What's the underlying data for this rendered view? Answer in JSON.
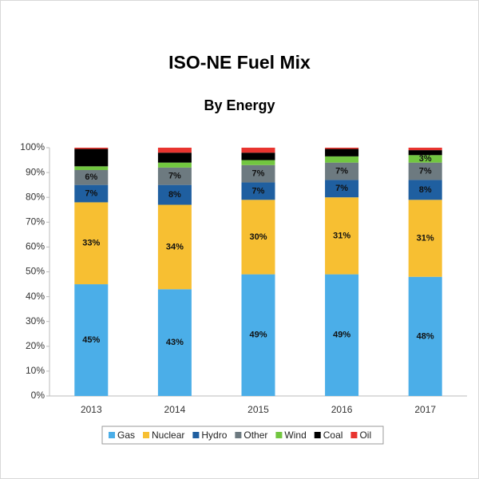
{
  "chart_data": {
    "type": "stacked_bar",
    "title": "ISO-NE Fuel Mix",
    "subtitle": "By Energy",
    "categories": [
      "2013",
      "2014",
      "2015",
      "2016",
      "2017"
    ],
    "series": [
      {
        "name": "Gas",
        "color": "#4baee8",
        "values": [
          45,
          43,
          49,
          49,
          48
        ],
        "value_labels": [
          "45%",
          "43%",
          "49%",
          "49%",
          "48%"
        ]
      },
      {
        "name": "Nuclear",
        "color": "#f7bf32",
        "values": [
          33,
          34,
          30,
          31,
          31
        ],
        "value_labels": [
          "33%",
          "34%",
          "30%",
          "31%",
          "31%"
        ]
      },
      {
        "name": "Hydro",
        "color": "#1f5fa0",
        "values": [
          7,
          8,
          7,
          7,
          8
        ],
        "value_labels": [
          "7%",
          "8%",
          "7%",
          "7%",
          "8%"
        ]
      },
      {
        "name": "Other",
        "color": "#6d7a80",
        "values": [
          6,
          7,
          7,
          7,
          7
        ],
        "value_labels": [
          "6%",
          "7%",
          "7%",
          "7%",
          "7%"
        ]
      },
      {
        "name": "Wind",
        "color": "#72c640",
        "values": [
          1.5,
          2,
          2,
          2.5,
          3
        ],
        "value_labels": [
          null,
          null,
          null,
          null,
          "3%"
        ]
      },
      {
        "name": "Coal",
        "color": "#000000",
        "values": [
          7,
          4,
          3,
          3,
          2
        ]
      },
      {
        "name": "Oil",
        "color": "#e8342f",
        "values": [
          0.5,
          2,
          2,
          0.5,
          1
        ]
      }
    ],
    "ylim": [
      0,
      100
    ],
    "yticks": [
      {
        "value": 0,
        "label": "0%"
      },
      {
        "value": 10,
        "label": "10%"
      },
      {
        "value": 20,
        "label": "20%"
      },
      {
        "value": 30,
        "label": "30%"
      },
      {
        "value": 40,
        "label": "40%"
      },
      {
        "value": 50,
        "label": "50%"
      },
      {
        "value": 60,
        "label": "60%"
      },
      {
        "value": 70,
        "label": "70%"
      },
      {
        "value": 80,
        "label": "80%"
      },
      {
        "value": 90,
        "label": "90%"
      },
      {
        "value": 100,
        "label": "100%"
      }
    ],
    "grid": false,
    "legend": "bottom"
  }
}
